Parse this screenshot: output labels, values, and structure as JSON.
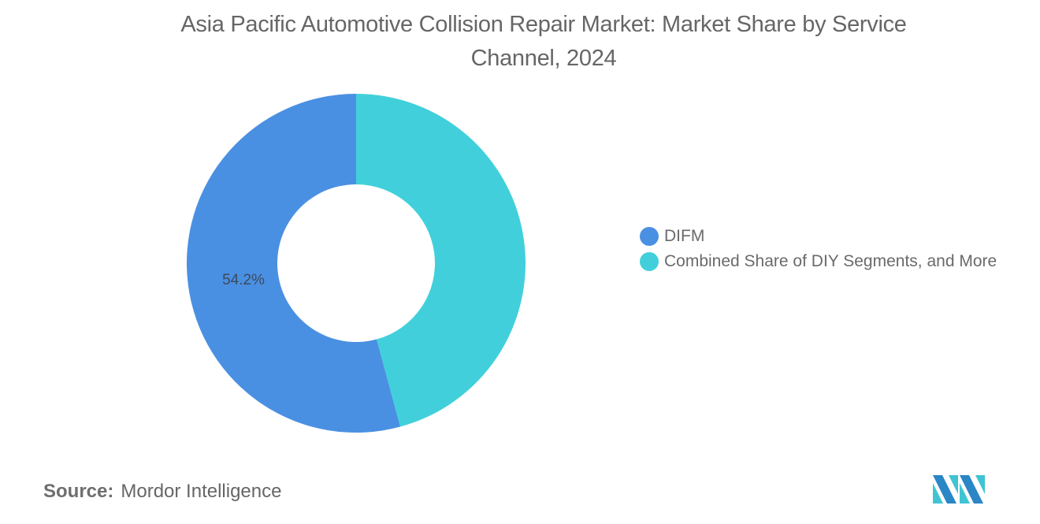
{
  "title": "Asia Pacific Automotive Collision Repair Market: Market Share by Service Channel, 2024",
  "title_lines": [
    "Asia Pacific Automotive Collision Repair Market: Market Share by Service",
    "Channel, 2024"
  ],
  "legend": [
    {
      "label": "DIFM",
      "color": "#4a90e2"
    },
    {
      "label": "Combined Share of DIY Segments, and More",
      "color": "#41d0db"
    }
  ],
  "data_labels": {
    "difm": "54.2%"
  },
  "source": {
    "label": "Source:",
    "value": "Mordor Intelligence"
  },
  "logo": {
    "name": "mordor-intelligence-logo",
    "colors": [
      "#2b86c5",
      "#40c4d4"
    ]
  },
  "chart_data": {
    "type": "pie",
    "subtype": "donut",
    "title": "Asia Pacific Automotive Collision Repair Market: Market Share by Service Channel, 2024",
    "categories": [
      "DIFM",
      "Combined Share of DIY Segments, and More"
    ],
    "values": [
      54.2,
      45.8
    ],
    "colors": [
      "#4a90e2",
      "#41d0db"
    ],
    "data_labels": [
      "54.2%",
      ""
    ],
    "legend_position": "right",
    "start_angle": "12 o'clock",
    "direction": "counterclockwise for DIFM (second slice drawn clockwise from top)",
    "source": "Mordor Intelligence"
  }
}
